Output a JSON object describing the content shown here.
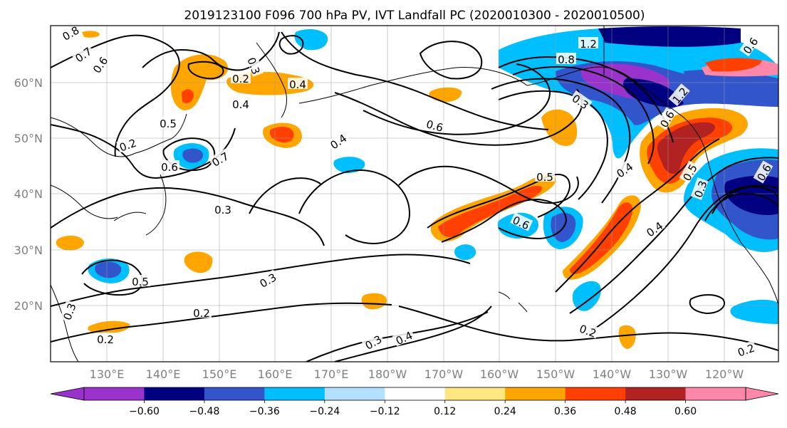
{
  "title": "2019123100 F096 700 hPa PV, IVT Landfall PC (2020010300 - 2020010500)",
  "map": {
    "lat_labels": [
      "60°N",
      "50°N",
      "40°N",
      "30°N",
      "20°N"
    ],
    "lon_labels": [
      "130°E",
      "140°E",
      "150°E",
      "160°E",
      "170°E",
      "180°W",
      "170°W",
      "160°W",
      "150°W",
      "140°W",
      "130°W",
      "120°W"
    ],
    "contour_labels": [
      {
        "text": "0.8"
      },
      {
        "text": "0.7"
      },
      {
        "text": "0.6"
      },
      {
        "text": "0.3"
      },
      {
        "text": "0.2"
      },
      {
        "text": "0.4"
      },
      {
        "text": "0.4"
      },
      {
        "text": "0.5"
      },
      {
        "text": "0.2"
      },
      {
        "text": "0.6"
      },
      {
        "text": "0.7"
      },
      {
        "text": "0.6"
      },
      {
        "text": "0.4"
      },
      {
        "text": "0.3"
      },
      {
        "text": "1.2"
      },
      {
        "text": "0.8"
      },
      {
        "text": "0.3"
      },
      {
        "text": "0.6"
      },
      {
        "text": "0.5"
      },
      {
        "text": "0.6"
      },
      {
        "text": "0.4"
      },
      {
        "text": "0.4"
      },
      {
        "text": "0.5"
      },
      {
        "text": "0.3"
      },
      {
        "text": "0.5"
      },
      {
        "text": "0.3"
      },
      {
        "text": "0.2"
      },
      {
        "text": "0.3"
      },
      {
        "text": "0.2"
      },
      {
        "text": "0.3"
      },
      {
        "text": "0.4"
      },
      {
        "text": "0.2"
      },
      {
        "text": "0.2"
      },
      {
        "text": "0.6"
      },
      {
        "text": "1.2"
      },
      {
        "text": "0.6"
      }
    ]
  },
  "colorbar": {
    "colors": [
      "#9933cc",
      "#000080",
      "#3355cc",
      "#00bfff",
      "#b3e0ff",
      "#ffffff",
      "#ffe680",
      "#ffa500",
      "#ff4000",
      "#b22222",
      "#ff88aa"
    ],
    "min_extend_color": "#9933cc",
    "max_extend_color": "#ff88aa",
    "tick_labels": [
      "−0.60",
      "−0.48",
      "−0.36",
      "−0.24",
      "−0.12",
      "0.12",
      "0.24",
      "0.36",
      "0.48",
      "0.60"
    ]
  }
}
